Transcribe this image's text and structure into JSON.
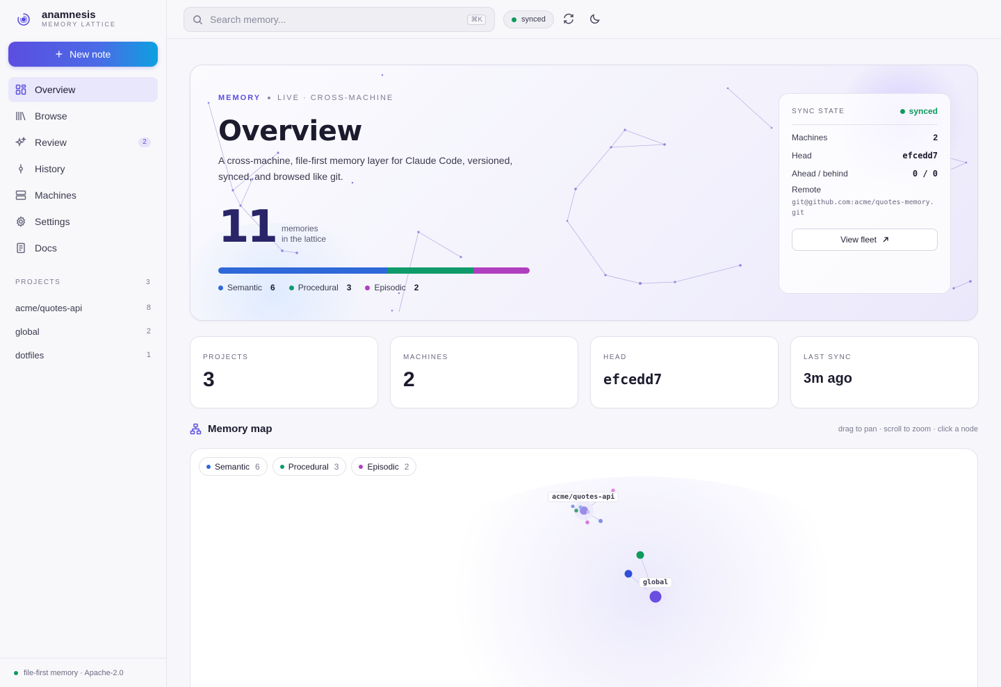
{
  "brand": {
    "name": "anamnesis",
    "subtitle": "MEMORY LATTICE"
  },
  "sidebar": {
    "new_note_label": "New note",
    "nav": [
      {
        "label": "Overview",
        "icon": "grid-icon",
        "active": true
      },
      {
        "label": "Browse",
        "icon": "library-icon"
      },
      {
        "label": "Review",
        "icon": "sparkles-icon",
        "badge": "2"
      },
      {
        "label": "History",
        "icon": "commit-icon"
      },
      {
        "label": "Machines",
        "icon": "server-icon"
      },
      {
        "label": "Settings",
        "icon": "gear-icon"
      },
      {
        "label": "Docs",
        "icon": "document-icon"
      }
    ],
    "projects_heading": "PROJECTS",
    "projects_count": "3",
    "projects": [
      {
        "name": "acme/quotes-api",
        "count": "8"
      },
      {
        "name": "global",
        "count": "2"
      },
      {
        "name": "dotfiles",
        "count": "1"
      }
    ],
    "footer": "file-first memory · Apache-2.0"
  },
  "topbar": {
    "search_placeholder": "Search memory...",
    "shortcut": "⌘K",
    "sync_status": "synced"
  },
  "hero": {
    "eyebrow_strong": "MEMORY",
    "eyebrow_rest": "LIVE · CROSS-MACHINE",
    "title": "Overview",
    "description": "A cross-machine, file-first memory layer for Claude Code, versioned, synced, and browsed like git.",
    "count": "11",
    "count_label_1": "memories",
    "count_label_2": "in the lattice",
    "breakdown": [
      {
        "name": "Semantic",
        "value": 6,
        "color": "#2f68d8"
      },
      {
        "name": "Procedural",
        "value": 3,
        "color": "#0f9a6a"
      },
      {
        "name": "Episodic",
        "value": 2,
        "color": "#b03fc0"
      }
    ]
  },
  "sync_state": {
    "title": "SYNC STATE",
    "status": "synced",
    "rows": [
      {
        "label": "Machines",
        "value": "2"
      },
      {
        "label": "Head",
        "value": "efcedd7"
      },
      {
        "label": "Ahead / behind",
        "value": "0 / 0"
      }
    ],
    "remote_label": "Remote",
    "remote_value": "git@github.com:acme/quotes-memory.git",
    "view_fleet_label": "View fleet"
  },
  "stats": [
    {
      "label": "PROJECTS",
      "value": "3"
    },
    {
      "label": "MACHINES",
      "value": "2"
    },
    {
      "label": "HEAD",
      "value": "efcedd7"
    },
    {
      "label": "LAST SYNC",
      "value": "3m ago"
    }
  ],
  "memory_map": {
    "title": "Memory map",
    "hint": "drag to pan · scroll to zoom · click a node",
    "chips": [
      {
        "name": "Semantic",
        "count": "6"
      },
      {
        "name": "Procedural",
        "count": "3"
      },
      {
        "name": "Episodic",
        "count": "2"
      }
    ],
    "node_labels": [
      "acme/quotes-api",
      "global"
    ]
  },
  "colors": {
    "accent": "#5b4ee0",
    "synced": "#0f9a5c",
    "semantic": "#2f68d8",
    "procedural": "#0f9a6a",
    "episodic": "#b03fc0"
  }
}
